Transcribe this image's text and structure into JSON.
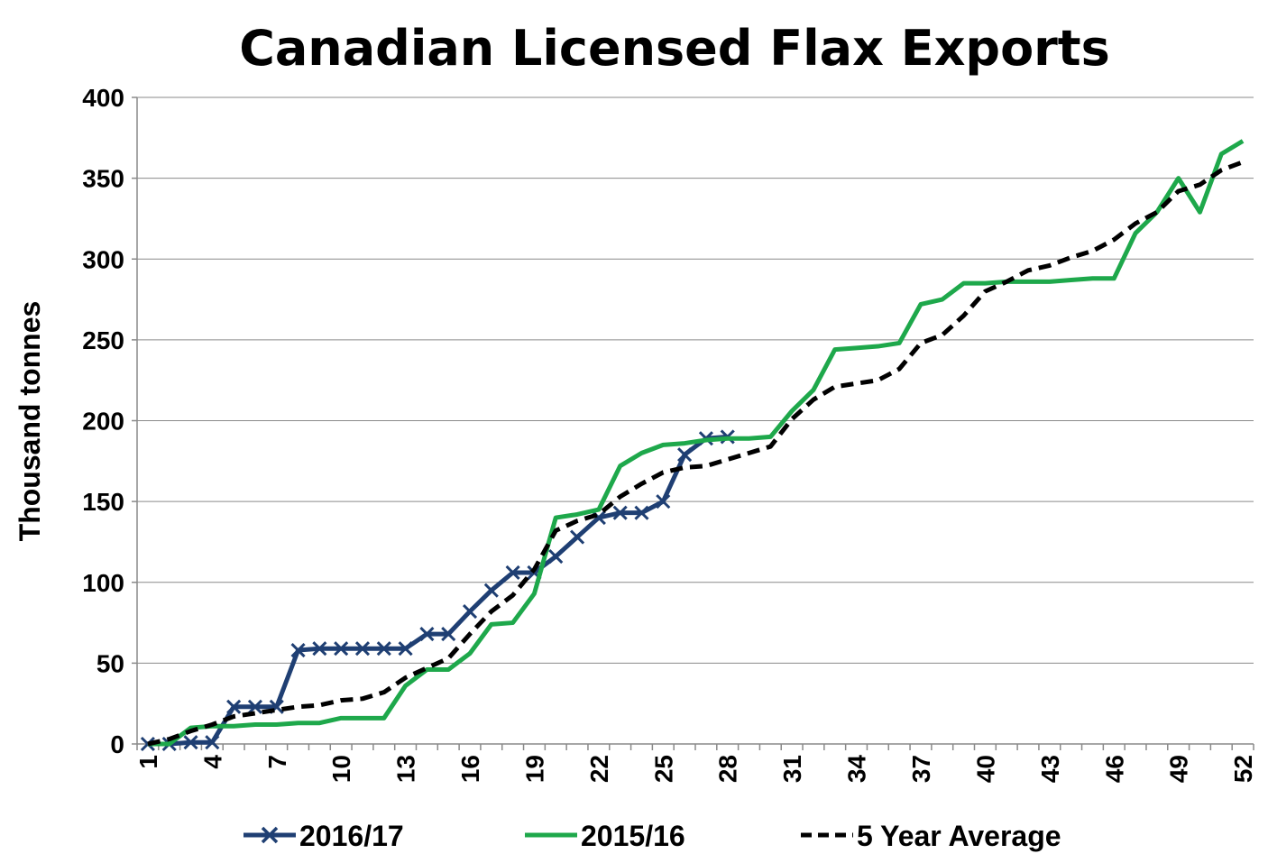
{
  "chart_data": {
    "type": "line",
    "title": "Canadian Licensed Flax Exports",
    "xlabel": "",
    "ylabel": "Thousand tonnes",
    "xlim": [
      1,
      52
    ],
    "ylim": [
      0,
      400
    ],
    "yticks": [
      0,
      50,
      100,
      150,
      200,
      250,
      300,
      350,
      400
    ],
    "xticks": [
      1,
      4,
      7,
      10,
      13,
      16,
      19,
      22,
      25,
      28,
      31,
      34,
      37,
      40,
      43,
      46,
      49,
      52
    ],
    "grid": true,
    "legend": "bottom",
    "series": [
      {
        "name": "2016/17",
        "color": "#1f3f73",
        "style": "solid-x-markers",
        "x": [
          1,
          2,
          3,
          4,
          5,
          6,
          7,
          8,
          9,
          10,
          11,
          12,
          13,
          14,
          15,
          16,
          17,
          18,
          19,
          20,
          21,
          22,
          23,
          24,
          25,
          26,
          27,
          28
        ],
        "values": [
          0,
          0,
          1,
          1,
          23,
          23,
          23,
          58,
          59,
          59,
          59,
          59,
          59,
          68,
          68,
          82,
          95,
          106,
          106,
          116,
          128,
          140,
          143,
          143,
          150,
          179,
          189,
          190
        ]
      },
      {
        "name": "2015/16",
        "color": "#1ea84b",
        "style": "solid",
        "x": [
          1,
          2,
          3,
          4,
          5,
          6,
          7,
          8,
          9,
          10,
          11,
          12,
          13,
          14,
          15,
          16,
          17,
          18,
          19,
          20,
          21,
          22,
          23,
          24,
          25,
          26,
          27,
          28,
          29,
          30,
          31,
          32,
          33,
          34,
          35,
          36,
          37,
          38,
          39,
          40,
          41,
          42,
          43,
          44,
          45,
          46,
          47,
          48,
          49,
          50,
          51,
          52
        ],
        "values": [
          0,
          0,
          10,
          11,
          11,
          12,
          12,
          13,
          13,
          16,
          16,
          16,
          36,
          46,
          46,
          56,
          74,
          75,
          93,
          140,
          142,
          145,
          172,
          180,
          185,
          186,
          188,
          189,
          189,
          190,
          206,
          219,
          244,
          245,
          246,
          248,
          272,
          275,
          285,
          285,
          286,
          286,
          286,
          287,
          288,
          288,
          316,
          329,
          350,
          329,
          365,
          373
        ]
      },
      {
        "name": "5 Year Average",
        "color": "#000000",
        "style": "dashed",
        "x": [
          1,
          2,
          3,
          4,
          5,
          6,
          7,
          8,
          9,
          10,
          11,
          12,
          13,
          14,
          15,
          16,
          17,
          18,
          19,
          20,
          21,
          22,
          23,
          24,
          25,
          26,
          27,
          28,
          29,
          30,
          31,
          32,
          33,
          34,
          35,
          36,
          37,
          38,
          39,
          40,
          41,
          42,
          43,
          44,
          45,
          46,
          47,
          48,
          49,
          50,
          51,
          52
        ],
        "values": [
          0,
          3,
          8,
          12,
          17,
          19,
          21,
          23,
          24,
          27,
          28,
          32,
          41,
          47,
          53,
          68,
          82,
          92,
          108,
          132,
          138,
          142,
          153,
          161,
          168,
          171,
          172,
          176,
          180,
          184,
          201,
          213,
          221,
          223,
          225,
          232,
          248,
          253,
          265,
          280,
          286,
          293,
          296,
          301,
          305,
          312,
          322,
          329,
          342,
          346,
          355,
          360
        ]
      }
    ]
  }
}
